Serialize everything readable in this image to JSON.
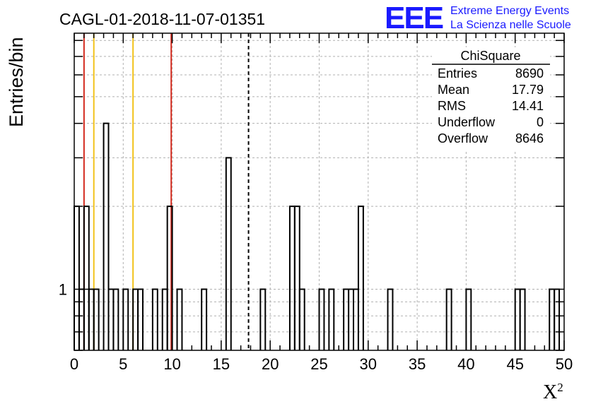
{
  "chart_data": {
    "type": "histogram",
    "title": "CAGL-01-2018-11-07-01351",
    "xlabel": "X",
    "xlabel_superscript": "2",
    "ylabel": "Entries/bin",
    "x_range": [
      0,
      50
    ],
    "y_scale": "log",
    "y_range": [
      0.6,
      8.5
    ],
    "y_tick_labels": [
      "1"
    ],
    "x_tick_labels": [
      "0",
      "5",
      "10",
      "15",
      "20",
      "25",
      "30",
      "35",
      "40",
      "45",
      "50"
    ],
    "grid": true,
    "bin_width": 0.5,
    "bins": [
      {
        "x": 0.0,
        "value": 2
      },
      {
        "x": 0.5,
        "value": 1
      },
      {
        "x": 1.0,
        "value": 2
      },
      {
        "x": 1.5,
        "value": 1
      },
      {
        "x": 2.0,
        "value": 1
      },
      {
        "x": 3.0,
        "value": 4
      },
      {
        "x": 3.5,
        "value": 1
      },
      {
        "x": 4.0,
        "value": 1
      },
      {
        "x": 5.0,
        "value": 1
      },
      {
        "x": 6.0,
        "value": 1
      },
      {
        "x": 6.5,
        "value": 1
      },
      {
        "x": 8.0,
        "value": 1
      },
      {
        "x": 9.0,
        "value": 1
      },
      {
        "x": 9.5,
        "value": 2
      },
      {
        "x": 10.5,
        "value": 1
      },
      {
        "x": 13.0,
        "value": 1
      },
      {
        "x": 15.5,
        "value": 3
      },
      {
        "x": 19.0,
        "value": 1
      },
      {
        "x": 22.0,
        "value": 2
      },
      {
        "x": 22.5,
        "value": 2
      },
      {
        "x": 23.0,
        "value": 1
      },
      {
        "x": 25.0,
        "value": 1
      },
      {
        "x": 26.0,
        "value": 1
      },
      {
        "x": 27.5,
        "value": 1
      },
      {
        "x": 28.0,
        "value": 1
      },
      {
        "x": 28.5,
        "value": 1
      },
      {
        "x": 29.0,
        "value": 2
      },
      {
        "x": 32.0,
        "value": 1
      },
      {
        "x": 38.0,
        "value": 1
      },
      {
        "x": 40.0,
        "value": 1
      },
      {
        "x": 45.0,
        "value": 1
      },
      {
        "x": 45.5,
        "value": 1
      },
      {
        "x": 48.5,
        "value": 1
      },
      {
        "x": 49.0,
        "value": 1
      }
    ],
    "vertical_lines": [
      {
        "x": 1.0,
        "color": "#d42a1e",
        "style": "solid"
      },
      {
        "x": 2.0,
        "color": "#f2c21b",
        "style": "solid"
      },
      {
        "x": 6.0,
        "color": "#f2c21b",
        "style": "solid"
      },
      {
        "x": 9.9,
        "color": "#d42a1e",
        "style": "solid"
      },
      {
        "x": 17.79,
        "color": "#000000",
        "style": "dashed"
      }
    ],
    "stats_box": {
      "title": "ChiSquare",
      "rows": [
        {
          "label": "Entries",
          "value": "8690"
        },
        {
          "label": "Mean",
          "value": "17.79"
        },
        {
          "label": "RMS",
          "value": "14.41"
        },
        {
          "label": "Underflow",
          "value": "0"
        },
        {
          "label": "Overflow",
          "value": "8646"
        }
      ]
    }
  },
  "logo": {
    "letters": "EEE",
    "line1": "Extreme Energy Events",
    "line2": "La Scienza nelle Scuole",
    "color": "#1a1aff"
  }
}
